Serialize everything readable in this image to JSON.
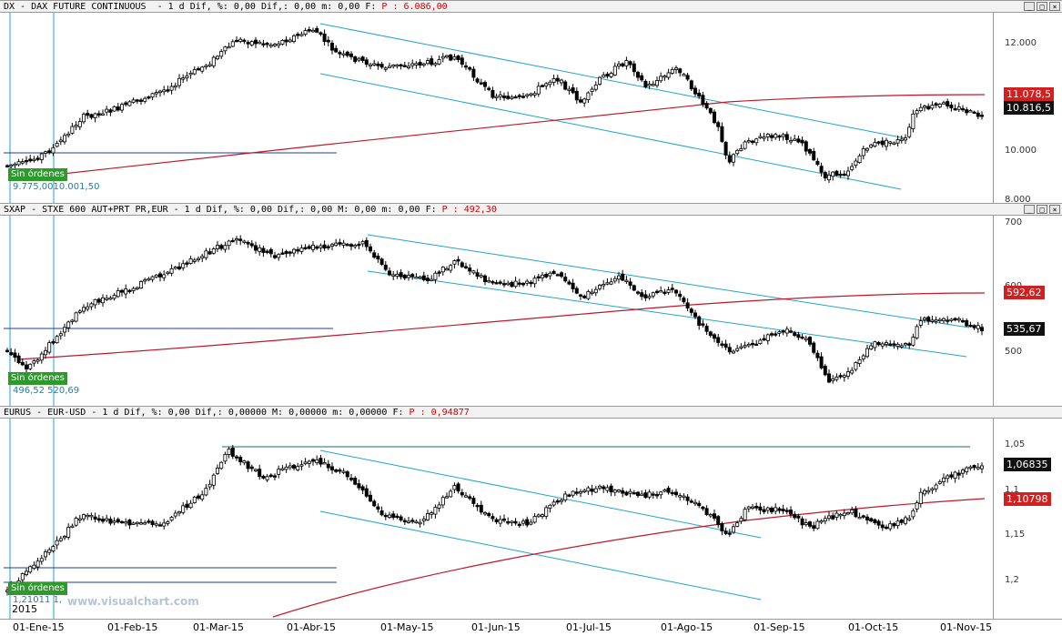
{
  "panels": [
    {
      "header_prefix": "DX - DAX FUTURE CONTINUOUS  - 1 d Dif, %: 0,00 Dif,: 0,00 m: 0,00 F: ",
      "header_price": "P : 6.086,00",
      "ticks": [
        "12.000",
        "10.000",
        "8.000"
      ],
      "tag_red": "11.078,5",
      "tag_black": "10.816,5",
      "sin_ordenes": "Sin órdenes",
      "values_text": "9.775,0010.001,50"
    },
    {
      "header_prefix": "SXAP - STXE 600 AUT+PRT PR,EUR - 1 d Dif, %: 0,00 Dif,: 0,00 M: 0,00 m: 0,00 F: ",
      "header_price": "P : 492,30",
      "ticks": [
        "700",
        "600",
        "500"
      ],
      "tag_red": "592,62",
      "tag_black": "535,67",
      "sin_ordenes": "Sin órdenes",
      "values_text": "496,52  520,69"
    },
    {
      "header_prefix": "EURUS - EUR-USD - 1 d Dif, %: 0,00 Dif,: 0,00000 M: 0,00000 m: 0,00000 F: ",
      "header_price": "P : 0,94877",
      "ticks": [
        "1,05",
        "1,1",
        "1,15",
        "1,2"
      ],
      "tag_red": "1,10798",
      "tag_black": "1,06835",
      "sin_ordenes": "Sin órdenes",
      "values_text": "1,21011 1,"
    }
  ],
  "watermark": "www.visualchart.com",
  "year": "2015",
  "xaxis_labels": [
    "01-Ene-15",
    "01-Feb-15",
    "01-Mar-15",
    "01-Abr-15",
    "01-May-15",
    "01-Jun-15",
    "01-Jul-15",
    "01-Ago-15",
    "01-Sep-15",
    "01-Oct-15",
    "01-Nov-15"
  ],
  "window_buttons": [
    "_",
    "□",
    "×"
  ],
  "colors": {
    "moving_average": "#c0182a",
    "channel": "#1ea6cc",
    "candle": "#000000",
    "horizontal_level": "#1a3fa0"
  }
}
